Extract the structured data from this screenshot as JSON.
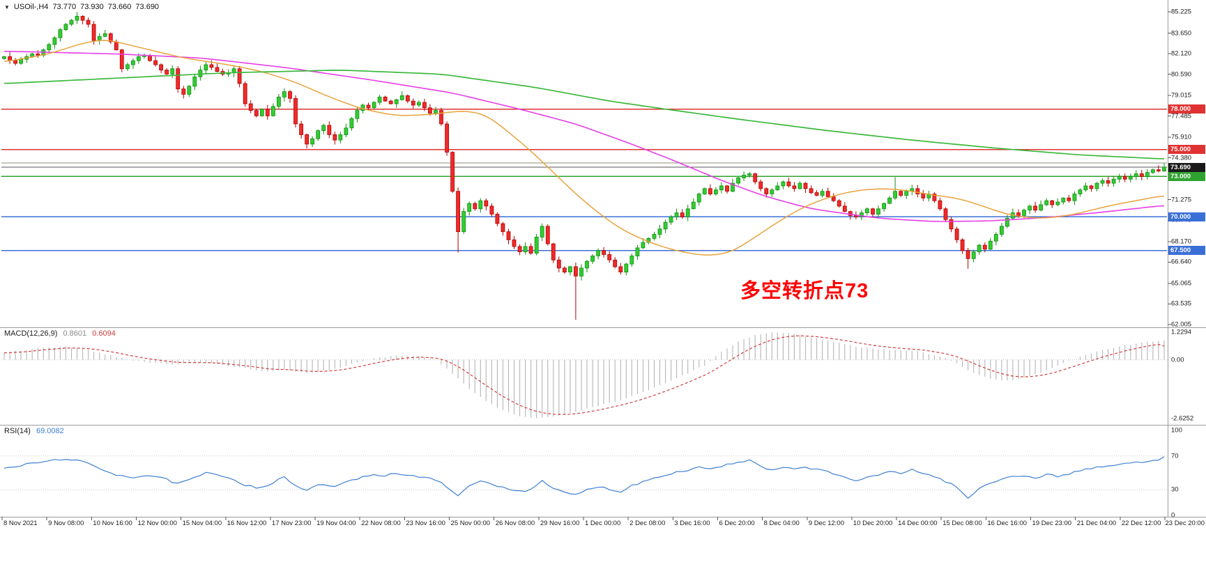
{
  "header": {
    "collapse_icon": "▼",
    "symbol": "USOil-,H4",
    "open": "73.770",
    "high": "73.930",
    "low": "73.660",
    "close": "73.690"
  },
  "annotation": {
    "text": "多空转折点73",
    "color": "#FF0000"
  },
  "panels": {
    "macd": {
      "label": "MACD(12,26,9)",
      "value_main": "0.8601",
      "value_signal": "0.6094",
      "scale": [
        "1.2294",
        "0.00",
        "-2.6252"
      ]
    },
    "rsi": {
      "label": "RSI(14)",
      "value": "69.0082",
      "scale": [
        "100",
        "70",
        "30",
        "0"
      ]
    }
  },
  "chart_data": {
    "type": "candlestick+indicators",
    "symbol": "USOil-",
    "timeframe": "H4",
    "price_axis": {
      "min": 62.005,
      "max": 85.225,
      "ticks": [
        "85.225",
        "83.650",
        "82.120",
        "80.590",
        "79.015",
        "77.485",
        "75.910",
        "74.380",
        "71.275",
        "69.745",
        "68.170",
        "66.640",
        "65.065",
        "63.535",
        "62.005"
      ]
    },
    "time_labels": [
      "8 Nov 2021",
      "9 Nov 08:00",
      "10 Nov 16:00",
      "12 Nov 00:00",
      "15 Nov 04:00",
      "16 Nov 12:00",
      "17 Nov 23:00",
      "19 Nov 04:00",
      "22 Nov 08:00",
      "23 Nov 16:00",
      "25 Nov 00:00",
      "26 Nov 08:00",
      "29 Nov 16:00",
      "1 Dec 00:00",
      "2 Dec 08:00",
      "3 Dec 16:00",
      "6 Dec 20:00",
      "8 Dec 04:00",
      "9 Dec 12:00",
      "10 Dec 20:00",
      "14 Dec 00:00",
      "15 Dec 08:00",
      "16 Dec 16:00",
      "19 Dec 23:00",
      "21 Dec 04:00",
      "22 Dec 12:00",
      "23 Dec 20:00"
    ],
    "closes": [
      81.9,
      81.6,
      81.4,
      81.7,
      81.9,
      82.1,
      82.0,
      82.4,
      82.8,
      83.3,
      83.9,
      84.3,
      84.6,
      84.9,
      84.6,
      84.3,
      83.1,
      83.4,
      83.6,
      83.0,
      82.4,
      81.0,
      81.3,
      81.6,
      81.9,
      82.0,
      81.6,
      81.3,
      80.9,
      80.6,
      81.0,
      79.5,
      79.1,
      79.7,
      80.4,
      80.9,
      81.3,
      81.1,
      80.8,
      80.6,
      80.7,
      81.0,
      79.9,
      78.4,
      77.9,
      77.5,
      78.0,
      77.5,
      78.2,
      78.9,
      79.3,
      78.8,
      76.9,
      76.1,
      75.4,
      75.8,
      76.4,
      76.8,
      76.1,
      75.7,
      76.1,
      76.6,
      77.3,
      77.9,
      78.3,
      78.1,
      78.5,
      78.9,
      78.6,
      78.4,
      78.7,
      79.0,
      78.6,
      78.3,
      78.5,
      78.1,
      77.7,
      77.9,
      76.9,
      74.8,
      71.9,
      68.9,
      70.4,
      71.0,
      70.6,
      71.2,
      70.8,
      70.2,
      69.5,
      68.9,
      68.3,
      67.8,
      67.4,
      67.8,
      67.3,
      68.5,
      69.3,
      68.0,
      66.8,
      66.2,
      65.9,
      66.3,
      65.6,
      66.2,
      66.7,
      67.1,
      67.5,
      67.2,
      66.8,
      66.3,
      65.9,
      66.5,
      67.1,
      67.7,
      68.1,
      68.4,
      68.7,
      69.1,
      69.6,
      70.0,
      70.3,
      70.0,
      70.6,
      71.1,
      71.7,
      72.1,
      71.7,
      72.0,
      72.3,
      71.9,
      72.5,
      72.9,
      73.1,
      73.2,
      72.6,
      72.1,
      71.7,
      72.0,
      72.3,
      72.6,
      72.3,
      72.1,
      72.5,
      72.1,
      71.8,
      71.6,
      71.9,
      71.5,
      71.2,
      70.8,
      70.4,
      70.1,
      70.0,
      70.3,
      70.6,
      70.2,
      70.6,
      71.0,
      71.4,
      71.9,
      71.6,
      71.9,
      72.1,
      71.7,
      71.4,
      71.7,
      71.2,
      70.6,
      69.8,
      69.1,
      68.3,
      67.5,
      66.9,
      67.4,
      67.9,
      67.6,
      68.2,
      68.7,
      69.3,
      69.9,
      70.3,
      70.1,
      70.5,
      70.8,
      70.5,
      70.9,
      71.2,
      70.9,
      71.1,
      71.4,
      71.2,
      71.7,
      72.0,
      72.3,
      72.1,
      72.5,
      72.7,
      72.5,
      72.8,
      73.0,
      72.8,
      73.0,
      73.2,
      73.0,
      73.3,
      73.5,
      73.4,
      73.69
    ],
    "wick_overrides": {
      "13": {
        "h": 85.22
      },
      "81": {
        "l": 67.35
      },
      "102": {
        "l": 62.35
      },
      "159": {
        "h": 72.95
      },
      "172": {
        "l": 66.15
      }
    },
    "ma_green_anchors": [
      [
        0,
        79.9
      ],
      [
        20,
        80.3
      ],
      [
        40,
        80.7
      ],
      [
        60,
        80.9
      ],
      [
        78,
        80.6
      ],
      [
        95,
        79.6
      ],
      [
        108,
        78.6
      ],
      [
        118,
        78.0
      ],
      [
        132,
        77.2
      ],
      [
        147,
        76.4
      ],
      [
        162,
        75.7
      ],
      [
        177,
        75.1
      ],
      [
        192,
        74.6
      ],
      [
        207,
        74.3
      ]
    ],
    "ma_magenta_anchors": [
      [
        0,
        82.3
      ],
      [
        20,
        82.1
      ],
      [
        35,
        81.8
      ],
      [
        50,
        81.1
      ],
      [
        65,
        80.2
      ],
      [
        80,
        79.2
      ],
      [
        92,
        78.0
      ],
      [
        102,
        76.9
      ],
      [
        112,
        75.4
      ],
      [
        120,
        74.1
      ],
      [
        128,
        72.7
      ],
      [
        136,
        71.5
      ],
      [
        144,
        70.6
      ],
      [
        156,
        69.9
      ],
      [
        166,
        69.65
      ],
      [
        176,
        69.7
      ],
      [
        186,
        69.95
      ],
      [
        196,
        70.35
      ],
      [
        207,
        70.85
      ]
    ],
    "ma_orange_anchors": [
      [
        0,
        81.5
      ],
      [
        8,
        82.1
      ],
      [
        14,
        82.9
      ],
      [
        18,
        83.2
      ],
      [
        24,
        82.6
      ],
      [
        32,
        81.8
      ],
      [
        40,
        81.3
      ],
      [
        46,
        80.8
      ],
      [
        52,
        80.0
      ],
      [
        58,
        78.9
      ],
      [
        64,
        78.0
      ],
      [
        70,
        77.5
      ],
      [
        76,
        77.6
      ],
      [
        82,
        77.9
      ],
      [
        86,
        77.6
      ],
      [
        90,
        76.3
      ],
      [
        94,
        74.9
      ],
      [
        98,
        73.3
      ],
      [
        102,
        71.7
      ],
      [
        106,
        70.3
      ],
      [
        110,
        69.1
      ],
      [
        114,
        68.3
      ],
      [
        118,
        67.7
      ],
      [
        122,
        67.3
      ],
      [
        126,
        67.1
      ],
      [
        130,
        67.4
      ],
      [
        134,
        68.5
      ],
      [
        138,
        69.6
      ],
      [
        142,
        70.6
      ],
      [
        146,
        71.3
      ],
      [
        150,
        71.8
      ],
      [
        154,
        72.05
      ],
      [
        158,
        72.1
      ],
      [
        162,
        71.9
      ],
      [
        166,
        71.6
      ],
      [
        170,
        71.4
      ],
      [
        174,
        70.9
      ],
      [
        178,
        70.3
      ],
      [
        182,
        69.95
      ],
      [
        186,
        69.9
      ],
      [
        190,
        70.1
      ],
      [
        194,
        70.5
      ],
      [
        198,
        70.9
      ],
      [
        202,
        71.2
      ],
      [
        207,
        71.6
      ]
    ],
    "levels": [
      {
        "price": 78.0,
        "label": "78.000",
        "line": "#E03232",
        "badge": "#E03232",
        "width": 1.4
      },
      {
        "price": 75.0,
        "label": "75.000",
        "line": "#E03232",
        "badge": "#E03232",
        "width": 1.4
      },
      {
        "price": 74.0,
        "label": "",
        "line": "#8C8C7A",
        "badge": "",
        "width": 1.2
      },
      {
        "price": 73.69,
        "label": "73.690",
        "line": "#555555",
        "badge": "#1A1A1A",
        "width": 1.0
      },
      {
        "price": 73.0,
        "label": "73.000",
        "line": "#2FA32F",
        "badge": "#2FA32F",
        "width": 1.4
      },
      {
        "price": 70.0,
        "label": "70.000",
        "line": "#3A6FD8",
        "badge": "#3A6FD8",
        "width": 1.4
      },
      {
        "price": 67.5,
        "label": "67.500",
        "line": "#3A6FD8",
        "badge": "#3A6FD8",
        "width": 1.4
      }
    ],
    "macd": {
      "range": [
        -2.6252,
        1.2294
      ],
      "current_main": 0.8601,
      "current_signal": 0.6094,
      "anchors": [
        [
          0,
          0.3
        ],
        [
          6,
          0.52
        ],
        [
          10,
          0.6
        ],
        [
          14,
          0.5
        ],
        [
          18,
          0.25
        ],
        [
          22,
          0.0
        ],
        [
          26,
          -0.12
        ],
        [
          30,
          -0.22
        ],
        [
          34,
          -0.1
        ],
        [
          38,
          -0.18
        ],
        [
          42,
          -0.35
        ],
        [
          46,
          -0.52
        ],
        [
          50,
          -0.45
        ],
        [
          54,
          -0.58
        ],
        [
          58,
          -0.45
        ],
        [
          62,
          -0.2
        ],
        [
          66,
          0.05
        ],
        [
          70,
          0.18
        ],
        [
          74,
          0.15
        ],
        [
          77,
          0.0
        ],
        [
          80,
          -0.6
        ],
        [
          83,
          -1.3
        ],
        [
          86,
          -1.85
        ],
        [
          89,
          -2.25
        ],
        [
          92,
          -2.5
        ],
        [
          95,
          -2.62
        ],
        [
          98,
          -2.55
        ],
        [
          101,
          -2.4
        ],
        [
          104,
          -2.2
        ],
        [
          107,
          -2.0
        ],
        [
          110,
          -1.8
        ],
        [
          113,
          -1.55
        ],
        [
          116,
          -1.25
        ],
        [
          119,
          -0.95
        ],
        [
          122,
          -0.6
        ],
        [
          125,
          -0.25
        ],
        [
          128,
          0.35
        ],
        [
          131,
          0.8
        ],
        [
          134,
          1.1
        ],
        [
          137,
          1.23
        ],
        [
          140,
          1.18
        ],
        [
          143,
          1.05
        ],
        [
          146,
          0.9
        ],
        [
          149,
          0.75
        ],
        [
          152,
          0.6
        ],
        [
          155,
          0.5
        ],
        [
          158,
          0.45
        ],
        [
          161,
          0.42
        ],
        [
          164,
          0.33
        ],
        [
          166,
          0.22
        ],
        [
          168,
          0.08
        ],
        [
          170,
          -0.15
        ],
        [
          172,
          -0.45
        ],
        [
          174,
          -0.7
        ],
        [
          176,
          -0.85
        ],
        [
          178,
          -0.92
        ],
        [
          180,
          -0.9
        ],
        [
          182,
          -0.8
        ],
        [
          184,
          -0.65
        ],
        [
          186,
          -0.45
        ],
        [
          188,
          -0.25
        ],
        [
          190,
          -0.05
        ],
        [
          192,
          0.12
        ],
        [
          194,
          0.28
        ],
        [
          196,
          0.42
        ],
        [
          198,
          0.55
        ],
        [
          200,
          0.65
        ],
        [
          202,
          0.73
        ],
        [
          204,
          0.8
        ],
        [
          206,
          0.84
        ],
        [
          207,
          0.86
        ]
      ]
    },
    "rsi": {
      "range": [
        0,
        100
      ],
      "levels": [
        70,
        30
      ],
      "current": 69.0082,
      "anchors": [
        [
          0,
          55
        ],
        [
          4,
          60
        ],
        [
          8,
          64
        ],
        [
          11,
          67
        ],
        [
          14,
          63
        ],
        [
          17,
          55
        ],
        [
          20,
          48
        ],
        [
          23,
          45
        ],
        [
          26,
          47
        ],
        [
          29,
          42
        ],
        [
          31,
          37
        ],
        [
          34,
          44
        ],
        [
          36,
          50
        ],
        [
          38,
          47
        ],
        [
          40,
          45
        ],
        [
          43,
          36
        ],
        [
          45,
          33
        ],
        [
          47,
          35
        ],
        [
          49,
          42
        ],
        [
          50,
          45
        ],
        [
          52,
          34
        ],
        [
          54,
          30
        ],
        [
          56,
          36
        ],
        [
          58,
          34
        ],
        [
          60,
          36
        ],
        [
          62,
          41
        ],
        [
          64,
          46
        ],
        [
          66,
          48
        ],
        [
          68,
          47
        ],
        [
          70,
          50
        ],
        [
          72,
          47
        ],
        [
          74,
          45
        ],
        [
          76,
          43
        ],
        [
          78,
          40
        ],
        [
          80,
          28
        ],
        [
          81,
          22
        ],
        [
          83,
          35
        ],
        [
          85,
          40
        ],
        [
          87,
          37
        ],
        [
          89,
          33
        ],
        [
          91,
          30
        ],
        [
          93,
          28
        ],
        [
          95,
          36
        ],
        [
          96,
          40
        ],
        [
          98,
          31
        ],
        [
          100,
          27
        ],
        [
          102,
          24
        ],
        [
          104,
          30
        ],
        [
          106,
          34
        ],
        [
          108,
          31
        ],
        [
          110,
          28
        ],
        [
          112,
          35
        ],
        [
          114,
          40
        ],
        [
          116,
          44
        ],
        [
          118,
          48
        ],
        [
          120,
          51
        ],
        [
          122,
          53
        ],
        [
          124,
          57
        ],
        [
          126,
          55
        ],
        [
          128,
          58
        ],
        [
          130,
          61
        ],
        [
          132,
          63
        ],
        [
          133,
          65
        ],
        [
          135,
          57
        ],
        [
          137,
          53
        ],
        [
          139,
          56
        ],
        [
          141,
          54
        ],
        [
          143,
          57
        ],
        [
          145,
          54
        ],
        [
          147,
          51
        ],
        [
          149,
          47
        ],
        [
          151,
          43
        ],
        [
          152,
          41
        ],
        [
          154,
          44
        ],
        [
          156,
          47
        ],
        [
          158,
          52
        ],
        [
          160,
          50
        ],
        [
          162,
          54
        ],
        [
          164,
          49
        ],
        [
          166,
          46
        ],
        [
          168,
          40
        ],
        [
          170,
          33
        ],
        [
          171,
          27
        ],
        [
          172,
          20
        ],
        [
          173,
          25
        ],
        [
          174,
          32
        ],
        [
          176,
          38
        ],
        [
          178,
          43
        ],
        [
          180,
          47
        ],
        [
          182,
          46
        ],
        [
          184,
          44
        ],
        [
          186,
          48
        ],
        [
          188,
          46
        ],
        [
          190,
          49
        ],
        [
          192,
          53
        ],
        [
          194,
          55
        ],
        [
          196,
          57
        ],
        [
          198,
          59
        ],
        [
          200,
          61
        ],
        [
          202,
          62
        ],
        [
          204,
          64
        ],
        [
          206,
          66
        ],
        [
          207,
          69
        ]
      ]
    },
    "colors": {
      "up_fill": "#33CC33",
      "up_stroke": "#0E8F0E",
      "down_fill": "#EF2B2B",
      "down_stroke": "#B00000",
      "ma_green": "#3CB83C",
      "ma_magenta": "#E53EE5",
      "ma_orange": "#E8A33D",
      "macd_hist": "#B4B4B4",
      "macd_signal": "#D23B3B",
      "rsi_line": "#3F7FD4",
      "grid": "#C8C8C8",
      "border": "#9A9A9A"
    }
  }
}
